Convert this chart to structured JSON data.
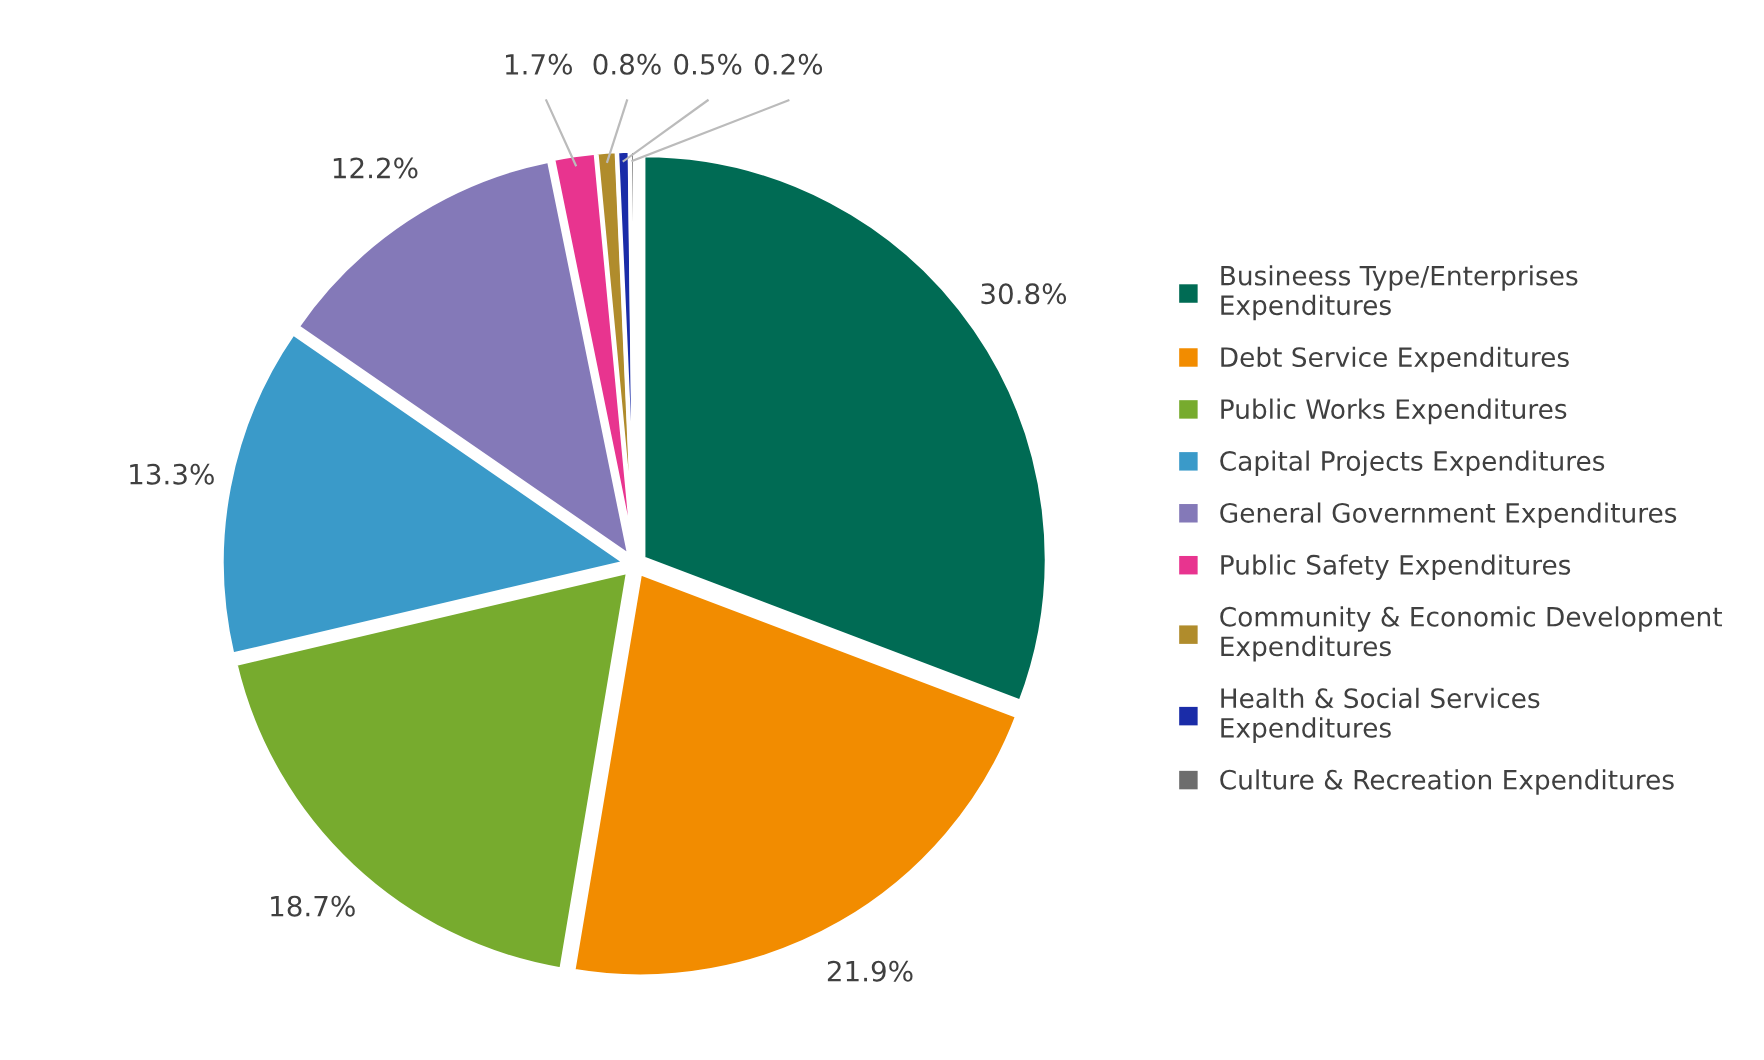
{
  "chart_data": {
    "type": "pie",
    "categories": [
      "Busineess Type/Enterprises Expenditures",
      "Debt Service Expenditures",
      "Public Works Expenditures",
      "Capital Projects Expenditures",
      "General Government Expenditures",
      "Public Safety Expenditures",
      "Community & Economic Development Expenditures",
      "Health & Social Services Expenditures",
      "Culture & Recreation Expenditures"
    ],
    "values": [
      30.8,
      21.9,
      18.7,
      13.3,
      12.2,
      1.7,
      0.8,
      0.5,
      0.2
    ],
    "colors": [
      "#006b54",
      "#f28c00",
      "#77ab2e",
      "#3a9ac9",
      "#8479b8",
      "#e8348f",
      "#b08c2c",
      "#1a2ca8",
      "#6d6d6d"
    ],
    "value_labels": [
      "30.8%",
      "21.9%",
      "18.7%",
      "13.3%",
      "12.2%",
      "1.7%",
      "0.8%",
      "0.5%",
      "0.2%"
    ],
    "legend": "right"
  }
}
